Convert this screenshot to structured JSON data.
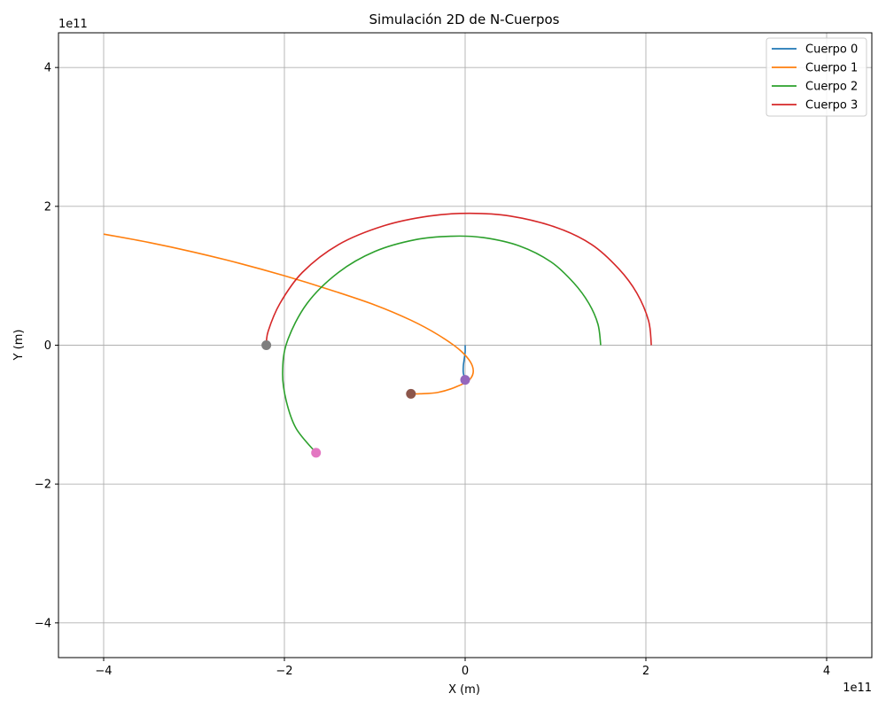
{
  "chart_data": {
    "type": "line",
    "title": "Simulación 2D de N-Cuerpos",
    "xlabel": "X (m)",
    "ylabel": "Y (m)",
    "x_offset_text": "1e11",
    "y_offset_text": "1e11",
    "xlim": [
      -4.5,
      4.5
    ],
    "ylim": [
      -4.5,
      4.5
    ],
    "xticks": [
      -4,
      -2,
      0,
      2,
      4
    ],
    "yticks": [
      -4,
      -2,
      0,
      2,
      4
    ],
    "xtick_labels": [
      "−4",
      "−2",
      "0",
      "2",
      "4"
    ],
    "ytick_labels": [
      "−4",
      "−2",
      "0",
      "2",
      "4"
    ],
    "grid": true,
    "legend_position": "top-right",
    "series": [
      {
        "name": "Cuerpo 0",
        "color": "#1f77b4",
        "points": [
          [
            0.0,
            0.0
          ],
          [
            0.0,
            -0.1
          ],
          [
            -0.01,
            -0.2
          ],
          [
            -0.02,
            -0.3
          ],
          [
            -0.02,
            -0.4
          ],
          [
            0.0,
            -0.5
          ]
        ]
      },
      {
        "name": "Cuerpo 1",
        "color": "#ff7f0e",
        "points": [
          [
            -4.0,
            1.6
          ],
          [
            -3.5,
            1.48
          ],
          [
            -3.0,
            1.34
          ],
          [
            -2.5,
            1.18
          ],
          [
            -2.0,
            1.0
          ],
          [
            -1.5,
            0.8
          ],
          [
            -1.0,
            0.58
          ],
          [
            -0.6,
            0.36
          ],
          [
            -0.3,
            0.15
          ],
          [
            -0.05,
            -0.08
          ],
          [
            0.08,
            -0.3
          ],
          [
            0.06,
            -0.48
          ],
          [
            -0.1,
            -0.6
          ],
          [
            -0.3,
            -0.68
          ],
          [
            -0.5,
            -0.7
          ],
          [
            -0.6,
            -0.7
          ]
        ]
      },
      {
        "name": "Cuerpo 2",
        "color": "#2ca02c",
        "points": [
          [
            1.5,
            0.0
          ],
          [
            1.47,
            0.3
          ],
          [
            1.37,
            0.6
          ],
          [
            1.2,
            0.9
          ],
          [
            0.95,
            1.2
          ],
          [
            0.6,
            1.43
          ],
          [
            0.2,
            1.55
          ],
          [
            -0.15,
            1.57
          ],
          [
            -0.55,
            1.52
          ],
          [
            -1.0,
            1.35
          ],
          [
            -1.4,
            1.05
          ],
          [
            -1.75,
            0.6
          ],
          [
            -1.97,
            0.05
          ],
          [
            -2.02,
            -0.4
          ],
          [
            -1.98,
            -0.8
          ],
          [
            -1.87,
            -1.2
          ],
          [
            -1.65,
            -1.55
          ]
        ]
      },
      {
        "name": "Cuerpo 3",
        "color": "#d62728",
        "points": [
          [
            2.06,
            0.0
          ],
          [
            2.03,
            0.35
          ],
          [
            1.9,
            0.75
          ],
          [
            1.7,
            1.1
          ],
          [
            1.4,
            1.45
          ],
          [
            1.0,
            1.7
          ],
          [
            0.5,
            1.86
          ],
          [
            0.05,
            1.9
          ],
          [
            -0.4,
            1.86
          ],
          [
            -0.9,
            1.72
          ],
          [
            -1.4,
            1.45
          ],
          [
            -1.8,
            1.05
          ],
          [
            -2.05,
            0.6
          ],
          [
            -2.18,
            0.2
          ],
          [
            -2.2,
            0.0
          ]
        ]
      }
    ],
    "markers": [
      {
        "x": 0.0,
        "y": -0.5,
        "color": "#9467bd"
      },
      {
        "x": -0.6,
        "y": -0.7,
        "color": "#8c564b"
      },
      {
        "x": -1.65,
        "y": -1.55,
        "color": "#e377c2"
      },
      {
        "x": -2.2,
        "y": 0.0,
        "color": "#7f7f7f"
      }
    ]
  }
}
